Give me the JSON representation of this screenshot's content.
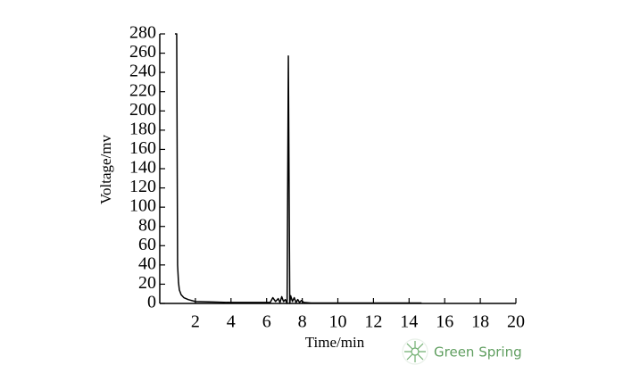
{
  "chart_data": {
    "type": "line",
    "xlabel": "Time/min",
    "ylabel": "Voltage/mv",
    "x": [
      0.85,
      0.95,
      1.0,
      1.05,
      1.1,
      1.2,
      1.35,
      1.6,
      2.0,
      3.0,
      4.0,
      5.0,
      6.0,
      6.2,
      6.35,
      6.5,
      6.65,
      6.75,
      6.85,
      6.95,
      7.05,
      7.15,
      7.22,
      7.3,
      7.35,
      7.45,
      7.55,
      7.65,
      7.75,
      7.85,
      7.95,
      8.1,
      8.5,
      10.0,
      12.0,
      14.0,
      14.7
    ],
    "values": [
      280,
      280,
      40,
      22,
      14,
      9,
      6,
      4,
      2,
      1.5,
      1,
      1,
      1,
      1,
      6,
      2,
      5,
      1,
      7,
      2,
      4,
      0,
      257,
      0,
      8,
      2,
      6,
      1,
      4,
      1,
      3,
      1,
      0.5,
      0.5,
      0.5,
      0.5,
      0.5
    ],
    "color": "#000000",
    "xlim": [
      0,
      20
    ],
    "xticks": [
      2,
      4,
      6,
      8,
      10,
      12,
      14,
      16,
      18,
      20
    ],
    "ylim": [
      0,
      280
    ],
    "yticks": [
      0,
      20,
      40,
      60,
      80,
      100,
      120,
      140,
      160,
      180,
      200,
      220,
      240,
      260,
      280
    ],
    "grid": false
  },
  "watermark": "Green Spring"
}
